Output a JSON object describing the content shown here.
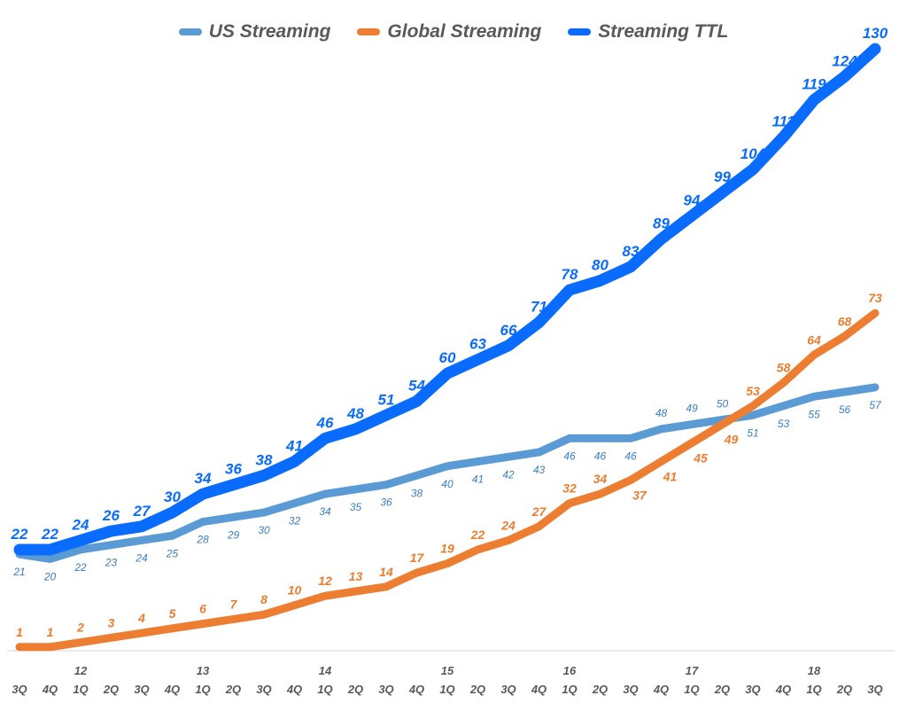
{
  "chart_data": {
    "type": "line",
    "title": "",
    "xlabel": "",
    "ylabel": "",
    "ylim": [
      0,
      135
    ],
    "grid": false,
    "legend_placement": "top-center",
    "categories": [
      "3Q",
      "4Q",
      "1Q",
      "2Q",
      "3Q",
      "4Q",
      "1Q",
      "2Q",
      "3Q",
      "4Q",
      "1Q",
      "2Q",
      "3Q",
      "4Q",
      "1Q",
      "2Q",
      "3Q",
      "4Q",
      "1Q",
      "2Q",
      "3Q",
      "4Q",
      "1Q",
      "2Q",
      "3Q",
      "4Q",
      "1Q",
      "2Q",
      "3Q"
    ],
    "year_labels": [
      {
        "label": "12",
        "index": 2
      },
      {
        "label": "13",
        "index": 6
      },
      {
        "label": "14",
        "index": 10
      },
      {
        "label": "15",
        "index": 14
      },
      {
        "label": "16",
        "index": 18
      },
      {
        "label": "17",
        "index": 22
      },
      {
        "label": "18",
        "index": 26
      }
    ],
    "series": [
      {
        "name": "US Streaming",
        "color": "#5b9bd5",
        "values": [
          21,
          20,
          22,
          23,
          24,
          25,
          28,
          29,
          30,
          32,
          34,
          35,
          36,
          38,
          40,
          41,
          42,
          43,
          46,
          46,
          46,
          48,
          49,
          50,
          51,
          53,
          55,
          56,
          57
        ]
      },
      {
        "name": "Global Streaming",
        "color": "#ed7d31",
        "values": [
          1,
          1,
          2,
          3,
          4,
          5,
          6,
          7,
          8,
          10,
          12,
          13,
          14,
          17,
          19,
          22,
          24,
          27,
          32,
          34,
          37,
          41,
          45,
          49,
          53,
          58,
          64,
          68,
          73
        ]
      },
      {
        "name": "Streaming TTL",
        "color": "#0a6cff",
        "values": [
          22,
          22,
          24,
          26,
          27,
          30,
          34,
          36,
          38,
          41,
          46,
          48,
          51,
          54,
          60,
          63,
          66,
          71,
          78,
          80,
          83,
          89,
          94,
          99,
          104,
          111,
          119,
          124,
          130
        ]
      }
    ]
  }
}
